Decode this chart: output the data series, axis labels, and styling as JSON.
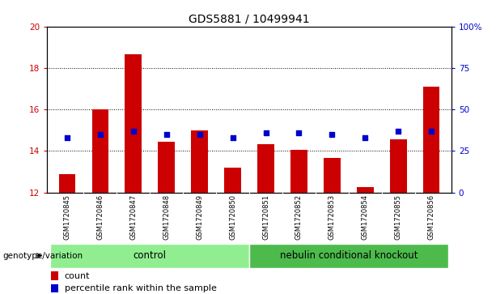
{
  "title": "GDS5881 / 10499941",
  "samples": [
    "GSM1720845",
    "GSM1720846",
    "GSM1720847",
    "GSM1720848",
    "GSM1720849",
    "GSM1720850",
    "GSM1720851",
    "GSM1720852",
    "GSM1720853",
    "GSM1720854",
    "GSM1720855",
    "GSM1720856"
  ],
  "bar_values": [
    12.9,
    16.0,
    18.65,
    14.45,
    15.0,
    13.2,
    14.35,
    14.05,
    13.65,
    12.25,
    14.55,
    17.1
  ],
  "percentile_values": [
    33,
    35,
    37,
    35,
    35,
    33,
    36,
    36,
    35,
    33,
    37,
    37
  ],
  "bar_bottom": 12.0,
  "ylim_left": [
    12,
    20
  ],
  "ylim_right": [
    0,
    100
  ],
  "yticks_left": [
    12,
    14,
    16,
    18,
    20
  ],
  "yticks_right": [
    0,
    25,
    50,
    75,
    100
  ],
  "yticklabels_right": [
    "0",
    "25",
    "50",
    "75",
    "100%"
  ],
  "bar_color": "#cc0000",
  "percentile_color": "#0000cc",
  "bar_width": 0.5,
  "groups": [
    {
      "label": "control",
      "start": 0,
      "end": 6,
      "color": "#90ee90"
    },
    {
      "label": "nebulin conditional knockout",
      "start": 6,
      "end": 12,
      "color": "#4cbb4c"
    }
  ],
  "xlabel_area": "genotype/variation",
  "legend_count": "count",
  "legend_percentile": "percentile rank within the sample",
  "bg_color": "#d8d8d8",
  "plot_bg": "#ffffff",
  "title_fontsize": 10,
  "tick_fontsize": 7.5,
  "sample_fontsize": 6.0,
  "group_fontsize": 8.5,
  "legend_fontsize": 8
}
